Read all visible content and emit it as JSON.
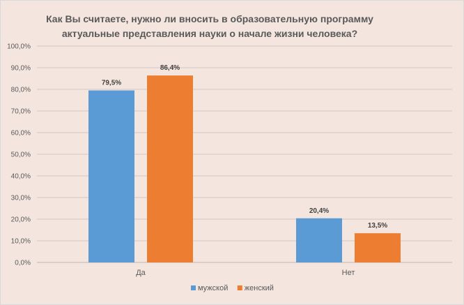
{
  "chart_data": {
    "type": "bar",
    "title_line1": "Как Вы считаете, нужно ли вносить в образовательную программу",
    "title_line2": "актуальные представления науки о начале жизни человека?",
    "categories": [
      "Да",
      "Нет"
    ],
    "series": [
      {
        "name": "мужской",
        "values": [
          79.5,
          20.4
        ],
        "labels": [
          "79,5%",
          "20,4%"
        ],
        "color": "#5b9bd5"
      },
      {
        "name": "женский",
        "values": [
          86.4,
          13.5
        ],
        "labels": [
          "86,4%",
          "13,5%"
        ],
        "color": "#ed7d31"
      }
    ],
    "ylim": [
      0,
      100
    ],
    "yticks": [
      "0,0%",
      "10,0%",
      "20,0%",
      "30,0%",
      "40,0%",
      "50,0%",
      "60,0%",
      "70,0%",
      "80,0%",
      "90,0%",
      "100,0%"
    ],
    "grid": true,
    "legend_position": "bottom",
    "xlabel": "",
    "ylabel": ""
  },
  "colors": {
    "background": "#f4e6df",
    "gridline": "#d0c6c1",
    "text": "#595959"
  }
}
